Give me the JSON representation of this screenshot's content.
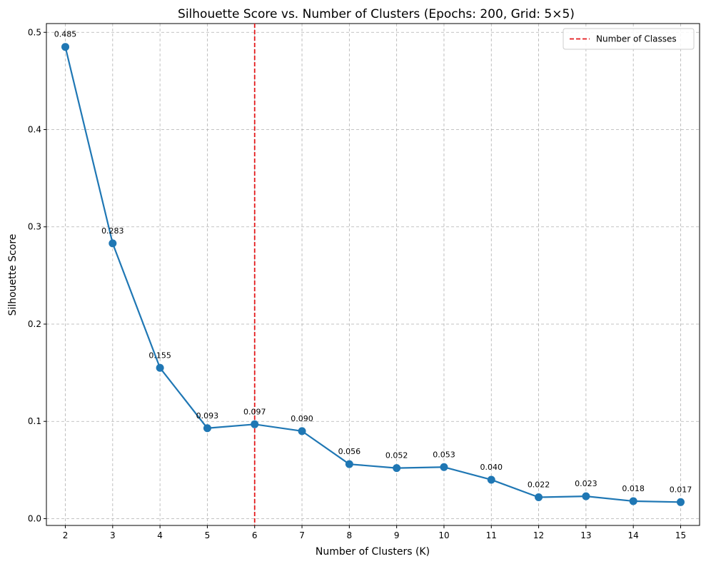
{
  "chart_data": {
    "type": "line",
    "title": "Silhouette Score vs. Number of Clusters (Epochs: 200, Grid: 5×5)",
    "xlabel": "Number of Clusters (K)",
    "ylabel": "Silhouette Score",
    "x": [
      2,
      3,
      4,
      5,
      6,
      7,
      8,
      9,
      10,
      11,
      12,
      13,
      14,
      15
    ],
    "series": [
      {
        "name": "Silhouette Score",
        "color": "#1f77b4",
        "values": [
          0.485,
          0.283,
          0.155,
          0.093,
          0.097,
          0.09,
          0.056,
          0.052,
          0.053,
          0.04,
          0.022,
          0.023,
          0.018,
          0.017
        ],
        "labels": [
          "0.485",
          "0.283",
          "0.155",
          "0.093",
          "0.097",
          "0.090",
          "0.056",
          "0.052",
          "0.053",
          "0.040",
          "0.022",
          "0.023",
          "0.018",
          "0.017"
        ]
      }
    ],
    "xlim": [
      1.6,
      15.4
    ],
    "ylim": [
      -0.007,
      0.509
    ],
    "xticks": [
      2,
      3,
      4,
      5,
      6,
      7,
      8,
      9,
      10,
      11,
      12,
      13,
      14,
      15
    ],
    "yticks": [
      0.0,
      0.1,
      0.2,
      0.3,
      0.4,
      0.5
    ],
    "ytick_labels": [
      "0.0",
      "0.1",
      "0.2",
      "0.3",
      "0.4",
      "0.5"
    ],
    "vline": {
      "x": 6,
      "color": "#e41a1c",
      "label": "Number of Classes"
    },
    "legend": {
      "position": "top-right",
      "entries": [
        "Number of Classes"
      ]
    },
    "grid": true
  }
}
